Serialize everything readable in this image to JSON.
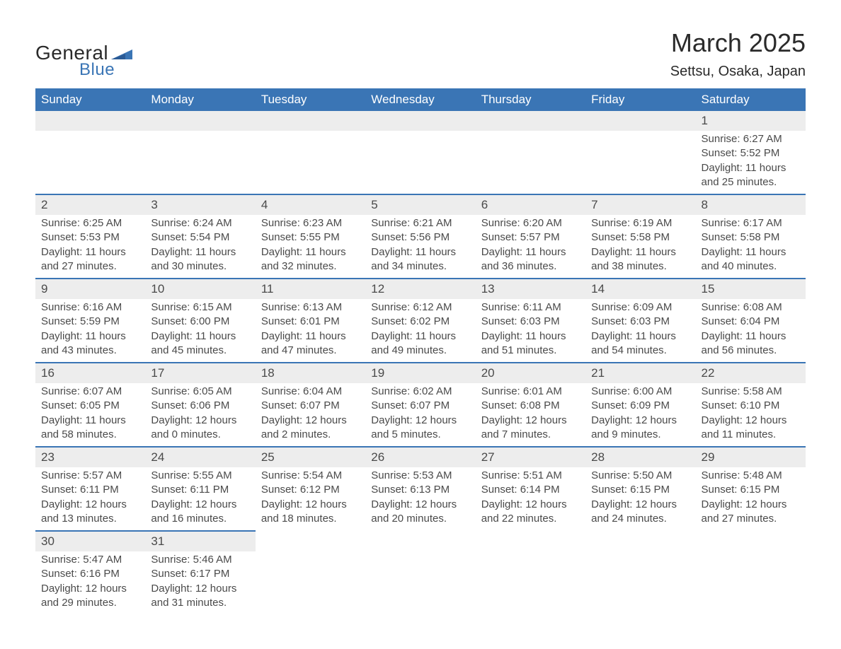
{
  "logo": {
    "text_general": "General",
    "text_blue": "Blue",
    "flag_color": "#3a75b5"
  },
  "title": "March 2025",
  "subtitle": "Settsu, Osaka, Japan",
  "header_bg": "#3a75b5",
  "header_fg": "#ffffff",
  "row_separator_color": "#3a75b5",
  "daynum_bg": "#ededed",
  "text_color": "#4a4a4a",
  "body_bg": "#ffffff",
  "days_of_week": [
    "Sunday",
    "Monday",
    "Tuesday",
    "Wednesday",
    "Thursday",
    "Friday",
    "Saturday"
  ],
  "weeks": [
    [
      null,
      null,
      null,
      null,
      null,
      null,
      {
        "n": "1",
        "sunrise": "6:27 AM",
        "sunset": "5:52 PM",
        "daylight": "11 hours and 25 minutes."
      }
    ],
    [
      {
        "n": "2",
        "sunrise": "6:25 AM",
        "sunset": "5:53 PM",
        "daylight": "11 hours and 27 minutes."
      },
      {
        "n": "3",
        "sunrise": "6:24 AM",
        "sunset": "5:54 PM",
        "daylight": "11 hours and 30 minutes."
      },
      {
        "n": "4",
        "sunrise": "6:23 AM",
        "sunset": "5:55 PM",
        "daylight": "11 hours and 32 minutes."
      },
      {
        "n": "5",
        "sunrise": "6:21 AM",
        "sunset": "5:56 PM",
        "daylight": "11 hours and 34 minutes."
      },
      {
        "n": "6",
        "sunrise": "6:20 AM",
        "sunset": "5:57 PM",
        "daylight": "11 hours and 36 minutes."
      },
      {
        "n": "7",
        "sunrise": "6:19 AM",
        "sunset": "5:58 PM",
        "daylight": "11 hours and 38 minutes."
      },
      {
        "n": "8",
        "sunrise": "6:17 AM",
        "sunset": "5:58 PM",
        "daylight": "11 hours and 40 minutes."
      }
    ],
    [
      {
        "n": "9",
        "sunrise": "6:16 AM",
        "sunset": "5:59 PM",
        "daylight": "11 hours and 43 minutes."
      },
      {
        "n": "10",
        "sunrise": "6:15 AM",
        "sunset": "6:00 PM",
        "daylight": "11 hours and 45 minutes."
      },
      {
        "n": "11",
        "sunrise": "6:13 AM",
        "sunset": "6:01 PM",
        "daylight": "11 hours and 47 minutes."
      },
      {
        "n": "12",
        "sunrise": "6:12 AM",
        "sunset": "6:02 PM",
        "daylight": "11 hours and 49 minutes."
      },
      {
        "n": "13",
        "sunrise": "6:11 AM",
        "sunset": "6:03 PM",
        "daylight": "11 hours and 51 minutes."
      },
      {
        "n": "14",
        "sunrise": "6:09 AM",
        "sunset": "6:03 PM",
        "daylight": "11 hours and 54 minutes."
      },
      {
        "n": "15",
        "sunrise": "6:08 AM",
        "sunset": "6:04 PM",
        "daylight": "11 hours and 56 minutes."
      }
    ],
    [
      {
        "n": "16",
        "sunrise": "6:07 AM",
        "sunset": "6:05 PM",
        "daylight": "11 hours and 58 minutes."
      },
      {
        "n": "17",
        "sunrise": "6:05 AM",
        "sunset": "6:06 PM",
        "daylight": "12 hours and 0 minutes."
      },
      {
        "n": "18",
        "sunrise": "6:04 AM",
        "sunset": "6:07 PM",
        "daylight": "12 hours and 2 minutes."
      },
      {
        "n": "19",
        "sunrise": "6:02 AM",
        "sunset": "6:07 PM",
        "daylight": "12 hours and 5 minutes."
      },
      {
        "n": "20",
        "sunrise": "6:01 AM",
        "sunset": "6:08 PM",
        "daylight": "12 hours and 7 minutes."
      },
      {
        "n": "21",
        "sunrise": "6:00 AM",
        "sunset": "6:09 PM",
        "daylight": "12 hours and 9 minutes."
      },
      {
        "n": "22",
        "sunrise": "5:58 AM",
        "sunset": "6:10 PM",
        "daylight": "12 hours and 11 minutes."
      }
    ],
    [
      {
        "n": "23",
        "sunrise": "5:57 AM",
        "sunset": "6:11 PM",
        "daylight": "12 hours and 13 minutes."
      },
      {
        "n": "24",
        "sunrise": "5:55 AM",
        "sunset": "6:11 PM",
        "daylight": "12 hours and 16 minutes."
      },
      {
        "n": "25",
        "sunrise": "5:54 AM",
        "sunset": "6:12 PM",
        "daylight": "12 hours and 18 minutes."
      },
      {
        "n": "26",
        "sunrise": "5:53 AM",
        "sunset": "6:13 PM",
        "daylight": "12 hours and 20 minutes."
      },
      {
        "n": "27",
        "sunrise": "5:51 AM",
        "sunset": "6:14 PM",
        "daylight": "12 hours and 22 minutes."
      },
      {
        "n": "28",
        "sunrise": "5:50 AM",
        "sunset": "6:15 PM",
        "daylight": "12 hours and 24 minutes."
      },
      {
        "n": "29",
        "sunrise": "5:48 AM",
        "sunset": "6:15 PM",
        "daylight": "12 hours and 27 minutes."
      }
    ],
    [
      {
        "n": "30",
        "sunrise": "5:47 AM",
        "sunset": "6:16 PM",
        "daylight": "12 hours and 29 minutes."
      },
      {
        "n": "31",
        "sunrise": "5:46 AM",
        "sunset": "6:17 PM",
        "daylight": "12 hours and 31 minutes."
      },
      null,
      null,
      null,
      null,
      null
    ]
  ],
  "labels": {
    "sunrise": "Sunrise",
    "sunset": "Sunset",
    "daylight": "Daylight"
  }
}
